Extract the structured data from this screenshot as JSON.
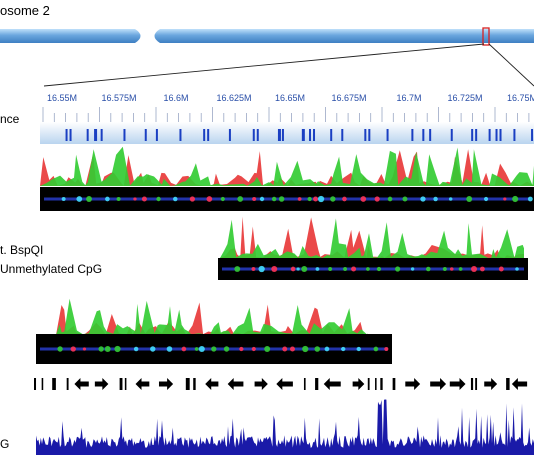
{
  "header": {
    "title": "osome 2"
  },
  "labels": {
    "sequence": "nce",
    "enzyme": "t. BspQI",
    "unmethylated": "Unmethylated CpG",
    "bottom_track": "G"
  },
  "ruler": {
    "ticks": [
      "16.55M",
      "16.575M",
      "16.6M",
      "16.625M",
      "16.65M",
      "16.675M",
      "16.7M",
      "16.725M",
      "16.75M"
    ]
  },
  "colors": {
    "chromosome": "#6aa6de",
    "highlight": "#d62020",
    "ruler_text": "#2a4fa8",
    "red_signal": "#e8393a",
    "green_signal": "#33cc33",
    "molecule_bg": "#000000",
    "molecule_line": "#2233aa",
    "gene_arrows": "#000000",
    "cpg_track": "#1a1aa8"
  }
}
